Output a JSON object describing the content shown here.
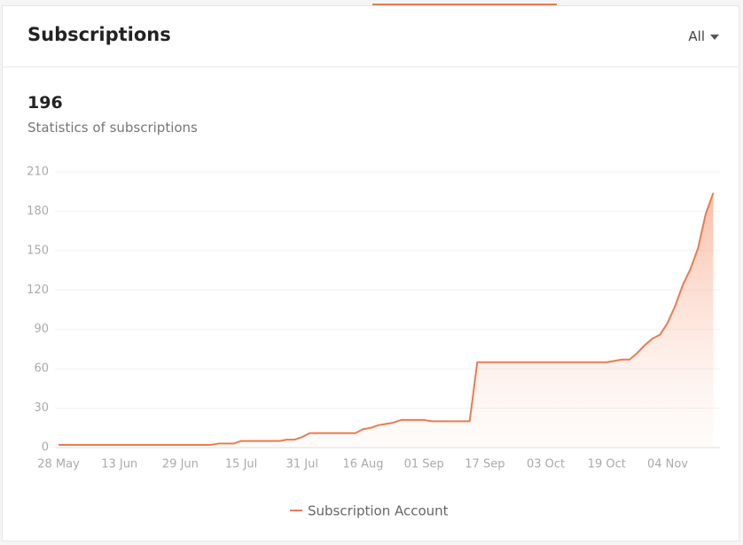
{
  "header": {
    "title": "Subscriptions",
    "filter": "All"
  },
  "summary": {
    "value": 196,
    "label": "Statistics of subscriptions"
  },
  "chart_data": {
    "type": "line",
    "categories": [
      "28 May",
      null,
      null,
      null,
      null,
      null,
      null,
      null,
      "13 Jun",
      null,
      null,
      null,
      null,
      null,
      null,
      null,
      "29 Jun",
      null,
      null,
      null,
      null,
      null,
      null,
      null,
      "15 Jul",
      null,
      null,
      null,
      null,
      null,
      null,
      null,
      "31 Jul",
      null,
      null,
      null,
      null,
      null,
      null,
      null,
      "16 Aug",
      null,
      null,
      null,
      null,
      null,
      null,
      null,
      "01 Sep",
      null,
      null,
      null,
      null,
      null,
      null,
      null,
      "17 Sep",
      null,
      null,
      null,
      null,
      null,
      null,
      null,
      "03 Oct",
      null,
      null,
      null,
      null,
      null,
      null,
      null,
      "19 Oct",
      null,
      null,
      null,
      null,
      null,
      null,
      null,
      "04 Nov",
      null,
      null,
      null,
      null,
      null,
      null
    ],
    "series": [
      {
        "name": "Subscription Account",
        "color": "#ee7a4f",
        "values": [
          2,
          2,
          2,
          2,
          2,
          2,
          2,
          2,
          2,
          2,
          2,
          2,
          2,
          2,
          2,
          2,
          2,
          2,
          2,
          2,
          2,
          3,
          3,
          3,
          5,
          5,
          5,
          5,
          5,
          5,
          6,
          6,
          8,
          11,
          11,
          11,
          11,
          11,
          11,
          11,
          14,
          15,
          17,
          18,
          19,
          21,
          21,
          21,
          21,
          20,
          20,
          20,
          20,
          20,
          20,
          65,
          65,
          65,
          65,
          65,
          65,
          65,
          65,
          65,
          65,
          65,
          65,
          65,
          65,
          65,
          65,
          65,
          65,
          66,
          67,
          67,
          72,
          78,
          83,
          86,
          95,
          108,
          124,
          136,
          152,
          178,
          194
        ]
      }
    ],
    "ylim": [
      0,
      210
    ],
    "yticks": [
      0,
      30,
      60,
      90,
      120,
      150,
      180,
      210
    ],
    "grid": true,
    "area": true
  }
}
